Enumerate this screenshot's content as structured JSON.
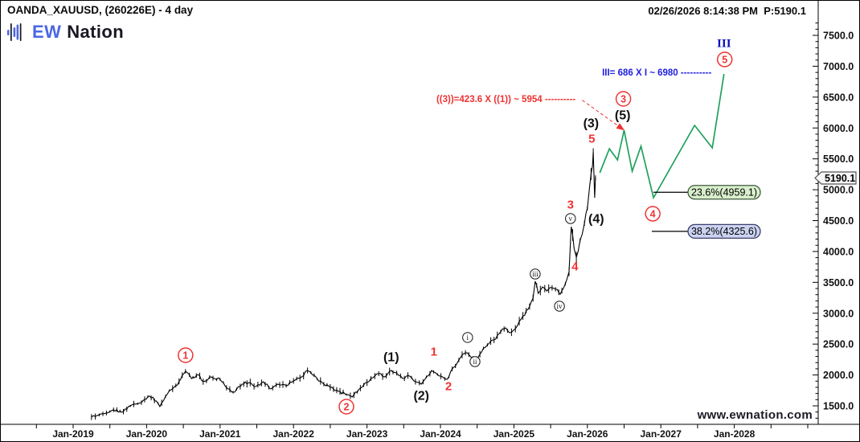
{
  "header": {
    "symbol_title": "OANDA_XAUUSD, (260226E) - 4 day",
    "logo_text_1": "EW",
    "logo_text_2": "Nation",
    "timestamp_price": "02/26/2026 8:14:38 PM  P:5190.1"
  },
  "watermark": "www.ewnation.com",
  "colors": {
    "price_line": "#000000",
    "projection_line": "#1fa15c",
    "wave_red": "#ef3434",
    "wave_black": "#111111",
    "wave_blue": "#0b0bc0",
    "annotation_red": "#f03030",
    "annotation_blue": "#2020dd",
    "fib_green_bg": "#d9efcc",
    "fib_green_border": "#3d5a3d",
    "fib_blue_bg": "#cbd3f1",
    "fib_blue_border": "#3d3d6b",
    "axis_text": "#111111",
    "tag_bg": "#f6f6f6",
    "tag_border": "#555555"
  },
  "chart_data": {
    "type": "line",
    "title": "OANDA_XAUUSD (260226E) 4 day - Elliott Wave count with green projection to wave III",
    "x_axis": {
      "tick_labels": [
        "Jan-2019",
        "Jan-2020",
        "Jan-2021",
        "Jan-2022",
        "Jan-2023",
        "Jan-2024",
        "Jan-2025",
        "Jan-2026",
        "Jan-2027",
        "Jan-2028"
      ],
      "start_year": 2019,
      "minor_step_years": 0.5
    },
    "y_axis": {
      "tick_labels": [
        "7500.0",
        "7000.0",
        "6500.0",
        "6000.0",
        "5500.0",
        "5000.0",
        "4500.0",
        "4000.0",
        "3500.0",
        "3000.0",
        "2500.0",
        "2000.0",
        "1500.0"
      ],
      "minor_step": 100,
      "range": [
        1200,
        7800
      ]
    },
    "price_series": [
      [
        2019.25,
        1319
      ],
      [
        2019.38,
        1371
      ],
      [
        2019.55,
        1436
      ],
      [
        2019.66,
        1397
      ],
      [
        2019.8,
        1514
      ],
      [
        2019.93,
        1553
      ],
      [
        2020.04,
        1657
      ],
      [
        2020.13,
        1579
      ],
      [
        2020.18,
        1488
      ],
      [
        2020.31,
        1748
      ],
      [
        2020.42,
        1839
      ],
      [
        2020.53,
        2060
      ],
      [
        2020.61,
        1943
      ],
      [
        2020.7,
        2008
      ],
      [
        2020.77,
        1891
      ],
      [
        2020.88,
        1969
      ],
      [
        2021.0,
        1930
      ],
      [
        2021.11,
        1774
      ],
      [
        2021.2,
        1722
      ],
      [
        2021.3,
        1852
      ],
      [
        2021.41,
        1878
      ],
      [
        2021.49,
        1813
      ],
      [
        2021.59,
        1891
      ],
      [
        2021.69,
        1774
      ],
      [
        2021.79,
        1852
      ],
      [
        2021.9,
        1826
      ],
      [
        2022.0,
        1904
      ],
      [
        2022.11,
        1969
      ],
      [
        2022.19,
        2073
      ],
      [
        2022.28,
        1995
      ],
      [
        2022.39,
        1878
      ],
      [
        2022.5,
        1800
      ],
      [
        2022.61,
        1735
      ],
      [
        2022.72,
        1683
      ],
      [
        2022.8,
        1644
      ],
      [
        2022.91,
        1787
      ],
      [
        2023.0,
        1878
      ],
      [
        2023.08,
        1956
      ],
      [
        2023.16,
        2021
      ],
      [
        2023.24,
        1969
      ],
      [
        2023.33,
        2073
      ],
      [
        2023.43,
        1995
      ],
      [
        2023.51,
        1943
      ],
      [
        2023.58,
        1982
      ],
      [
        2023.66,
        1891
      ],
      [
        2023.74,
        1852
      ],
      [
        2023.81,
        1969
      ],
      [
        2023.88,
        2073
      ],
      [
        2023.96,
        2008
      ],
      [
        2024.03,
        1969
      ],
      [
        2024.09,
        1930
      ],
      [
        2024.16,
        2099
      ],
      [
        2024.25,
        2242
      ],
      [
        2024.34,
        2359
      ],
      [
        2024.41,
        2294
      ],
      [
        2024.47,
        2255
      ],
      [
        2024.56,
        2372
      ],
      [
        2024.64,
        2489
      ],
      [
        2024.73,
        2567
      ],
      [
        2024.82,
        2697
      ],
      [
        2024.89,
        2762
      ],
      [
        2024.94,
        2684
      ],
      [
        2025.02,
        2749
      ],
      [
        2025.1,
        2905
      ],
      [
        2025.19,
        3061
      ],
      [
        2025.26,
        3243
      ],
      [
        2025.29,
        3517
      ],
      [
        2025.33,
        3321
      ],
      [
        2025.39,
        3425
      ],
      [
        2025.45,
        3360
      ],
      [
        2025.52,
        3412
      ],
      [
        2025.59,
        3386
      ],
      [
        2025.63,
        3308
      ],
      [
        2025.7,
        3477
      ],
      [
        2025.75,
        3672
      ],
      [
        2025.78,
        4401
      ],
      [
        2025.82,
        4050
      ],
      [
        2025.85,
        3906
      ],
      [
        2025.9,
        4180
      ],
      [
        2025.96,
        4453
      ],
      [
        2026.0,
        4700
      ],
      [
        2026.03,
        5038
      ],
      [
        2026.07,
        5390
      ],
      [
        2026.08,
        5611
      ],
      [
        2026.1,
        4869
      ],
      [
        2026.11,
        5195
      ]
    ],
    "projection_series": [
      [
        2026.17,
        5274
      ],
      [
        2026.3,
        5664
      ],
      [
        2026.41,
        5482
      ],
      [
        2026.5,
        5964
      ],
      [
        2026.61,
        5300
      ],
      [
        2026.73,
        5704
      ],
      [
        2026.9,
        4871
      ],
      [
        2027.46,
        6042
      ],
      [
        2027.7,
        5678
      ],
      [
        2027.86,
        6875
      ]
    ],
    "wave_labels": [
      {
        "text": "1",
        "style": "circled-red",
        "t": 2020.53,
        "p": 2320
      },
      {
        "text": "2",
        "style": "circled-red",
        "t": 2022.72,
        "p": 1487
      },
      {
        "text": "3",
        "style": "circled-red",
        "t": 2026.49,
        "p": 6472
      },
      {
        "text": "4",
        "style": "circled-red",
        "t": 2026.89,
        "p": 4611
      },
      {
        "text": "5",
        "style": "circled-red",
        "t": 2027.87,
        "p": 7110
      },
      {
        "text": "(1)",
        "style": "paren-black",
        "t": 2023.33,
        "p": 2294
      },
      {
        "text": "(2)",
        "style": "paren-black",
        "t": 2023.74,
        "p": 1669
      },
      {
        "text": "(3)",
        "style": "paren-black",
        "t": 2026.05,
        "p": 6081
      },
      {
        "text": "(4)",
        "style": "paren-black",
        "t": 2026.12,
        "p": 4533
      },
      {
        "text": "(5)",
        "style": "paren-black",
        "t": 2026.48,
        "p": 6211
      },
      {
        "text": "1",
        "style": "plain-red",
        "t": 2023.91,
        "p": 2385
      },
      {
        "text": "2",
        "style": "plain-red",
        "t": 2024.11,
        "p": 1826
      },
      {
        "text": "3",
        "style": "plain-red",
        "t": 2025.77,
        "p": 4767
      },
      {
        "text": "4",
        "style": "plain-red",
        "t": 2025.83,
        "p": 3765
      },
      {
        "text": "5",
        "style": "plain-red",
        "t": 2026.06,
        "p": 5834
      },
      {
        "text": "i",
        "style": "circled-roman",
        "t": 2024.37,
        "p": 2607
      },
      {
        "text": "ii",
        "style": "circled-roman",
        "t": 2024.47,
        "p": 2216
      },
      {
        "text": "iii",
        "style": "circled-roman",
        "t": 2025.29,
        "p": 3635
      },
      {
        "text": "iv",
        "style": "circled-roman",
        "t": 2025.62,
        "p": 3114
      },
      {
        "text": "v",
        "style": "circled-roman",
        "t": 2025.77,
        "p": 4533
      },
      {
        "text": "III",
        "style": "roman-blue",
        "t": 2027.86,
        "p": 7383
      }
    ],
    "annotations": [
      {
        "text": "((3))=423.6 X ((1)) ~ 5954 ----------",
        "color": "red",
        "t": 2023.945,
        "p": 6472
      },
      {
        "text": "III= 686 X I ~ 6980 ----------",
        "color": "blue",
        "t": 2026.2,
        "p": 6901
      }
    ],
    "arrow": {
      "from": [
        2025.93,
        6450
      ],
      "tip": [
        2026.505,
        5961
      ]
    },
    "fib_levels": [
      {
        "label": "23.6%(4959.1)",
        "price": 4959.1,
        "line_start_t": 2026.899,
        "box": "green"
      },
      {
        "label": "38.2%(4325.6)",
        "price": 4325.6,
        "line_start_t": 2026.877,
        "box": "blue"
      }
    ],
    "last_price": {
      "value": "5190.1",
      "price": 5190.1
    }
  }
}
